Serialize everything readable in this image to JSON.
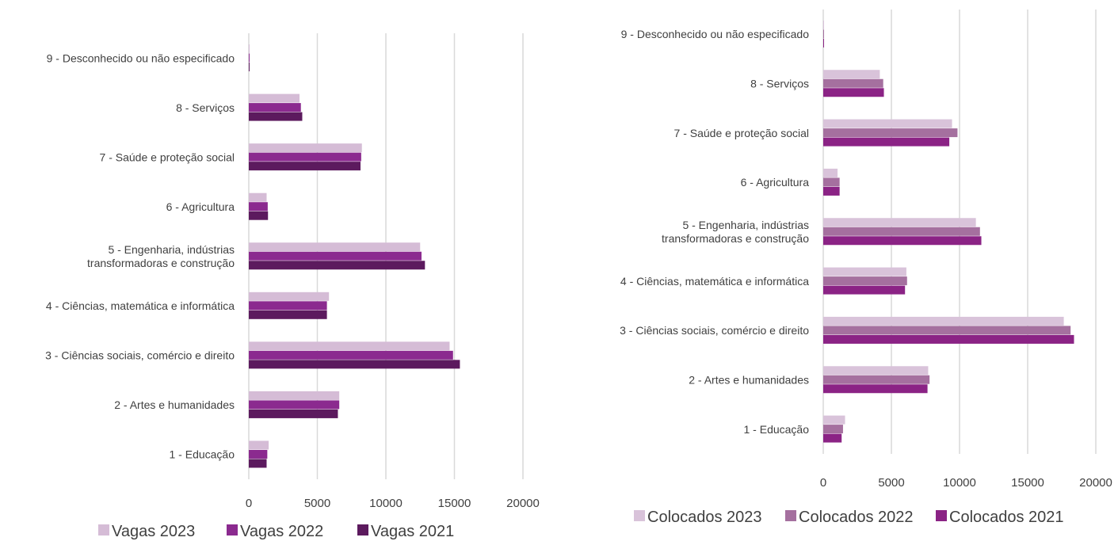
{
  "chart_data": [
    {
      "type": "bar",
      "orientation": "horizontal",
      "categories": [
        [
          "1 - Educação"
        ],
        [
          "2 - Artes e humanidades"
        ],
        [
          "3 - Ciências sociais, comércio e direito"
        ],
        [
          "4 - Ciências, matemática e informática"
        ],
        [
          "5 - Engenharia, indústrias",
          "transformadoras e construção"
        ],
        [
          "6 - Agricultura"
        ],
        [
          "7 - Saúde e proteção social"
        ],
        [
          "8 - Serviços"
        ],
        [
          "9 - Desconhecido ou não especificado"
        ]
      ],
      "series": [
        {
          "name": "Vagas 2023",
          "color": "#d5bcd6",
          "values": [
            1450,
            6600,
            14650,
            5850,
            12500,
            1300,
            8250,
            3700,
            30
          ]
        },
        {
          "name": "Vagas 2022",
          "color": "#8b2a8f",
          "values": [
            1350,
            6600,
            14900,
            5700,
            12600,
            1380,
            8200,
            3800,
            30
          ]
        },
        {
          "name": "Vagas 2021",
          "color": "#5c1a5e",
          "values": [
            1300,
            6500,
            15400,
            5700,
            12850,
            1400,
            8150,
            3900,
            30
          ]
        }
      ],
      "xticks": [
        "0",
        "5000",
        "10000",
        "15000",
        "20000"
      ],
      "xlim": [
        0,
        20000
      ],
      "grid": true,
      "legend": "bottom"
    },
    {
      "type": "bar",
      "orientation": "horizontal",
      "categories": [
        [
          "1 - Educação"
        ],
        [
          "2 - Artes e humanidades"
        ],
        [
          "3 - Ciências sociais, comércio e direito"
        ],
        [
          "4 - Ciências, matemática e informática"
        ],
        [
          "5 - Engenharia, indústrias",
          "transformadoras e construção"
        ],
        [
          "6 - Agricultura"
        ],
        [
          "7 - Saúde e proteção social"
        ],
        [
          "8 - Serviços"
        ],
        [
          "9 - Desconhecido ou não especificado"
        ]
      ],
      "series": [
        {
          "name": "Colocados 2023",
          "color": "#d9c3da",
          "values": [
            1600,
            7700,
            17650,
            6100,
            11200,
            1050,
            9450,
            4150,
            20
          ]
        },
        {
          "name": "Colocados 2022",
          "color": "#a5709f",
          "values": [
            1450,
            7800,
            18150,
            6150,
            11500,
            1200,
            9850,
            4400,
            20
          ]
        },
        {
          "name": "Colocados 2021",
          "color": "#8b2385",
          "values": [
            1350,
            7650,
            18400,
            6000,
            11600,
            1200,
            9250,
            4450,
            20
          ]
        }
      ],
      "xticks": [
        "0",
        "5000",
        "10000",
        "15000",
        "20000"
      ],
      "xlim": [
        0,
        20000
      ],
      "grid": true,
      "legend": "bottom"
    }
  ]
}
